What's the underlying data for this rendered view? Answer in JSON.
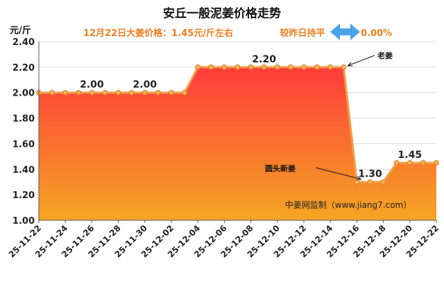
{
  "chart_data": {
    "type": "area",
    "title": "安丘一般泥姜价格走势",
    "subtitle": {
      "price_text": "12月22日大姜价格：1.45元/斤左右",
      "change_text": "较昨日持平",
      "change_value": "0.00%",
      "icon": "double-arrow-icon"
    },
    "yunit": "元/斤",
    "ylim": [
      1.0,
      2.4
    ],
    "yticks": [
      "1.00",
      "1.20",
      "1.40",
      "1.60",
      "1.80",
      "2.00",
      "2.20",
      "2.40"
    ],
    "xtick_labels": [
      "25-11-22",
      "25-11-24",
      "25-11-26",
      "25-11-28",
      "25-11-30",
      "25-12-02",
      "25-12-04",
      "25-12-06",
      "25-12-08",
      "25-12-10",
      "25-12-12",
      "25-12-14",
      "25-12-16",
      "25-12-18",
      "25-12-20",
      "25-12-22"
    ],
    "x": [
      "25-11-22",
      "25-11-23",
      "25-11-24",
      "25-11-25",
      "25-11-26",
      "25-11-27",
      "25-11-28",
      "25-11-29",
      "25-11-30",
      "25-12-01",
      "25-12-02",
      "25-12-03",
      "25-12-04",
      "25-12-05",
      "25-12-06",
      "25-12-07",
      "25-12-08",
      "25-12-09",
      "25-12-10",
      "25-12-11",
      "25-12-12",
      "25-12-13",
      "25-12-14",
      "25-12-15",
      "25-12-16",
      "25-12-17",
      "25-12-18",
      "25-12-19",
      "25-12-20",
      "25-12-21",
      "25-12-22"
    ],
    "values": [
      2.0,
      2.0,
      2.0,
      2.0,
      2.0,
      2.0,
      2.0,
      2.0,
      2.0,
      2.0,
      2.0,
      2.0,
      2.2,
      2.2,
      2.2,
      2.2,
      2.2,
      2.2,
      2.2,
      2.2,
      2.2,
      2.2,
      2.2,
      2.2,
      1.3,
      1.3,
      1.3,
      1.45,
      1.45,
      1.45,
      1.45
    ],
    "data_labels": [
      {
        "x": "25-11-26",
        "y": 2.0,
        "text": "2.00"
      },
      {
        "x": "25-11-30",
        "y": 2.0,
        "text": "2.00"
      },
      {
        "x": "25-12-09",
        "y": 2.2,
        "text": "2.20"
      },
      {
        "x": "25-12-17",
        "y": 1.3,
        "text": "1.30"
      },
      {
        "x": "25-12-20",
        "y": 1.45,
        "text": "1.45"
      }
    ],
    "annotations": [
      {
        "text": "老姜",
        "target_x": "25-12-15",
        "target_y": 2.2
      },
      {
        "text": "圆头新姜",
        "target_x": "25-12-16",
        "target_y": 1.3
      }
    ],
    "grid": true,
    "colors": {
      "line": "#f0a04b",
      "marker_fill": "#f5b15a",
      "area_top": "#ff3b3b",
      "area_bottom": "#f5a623",
      "accent_text": "#f07d1e",
      "arrow": "#4aa3e8"
    },
    "watermark": "中姜网监制（www.jiang7.com）"
  }
}
